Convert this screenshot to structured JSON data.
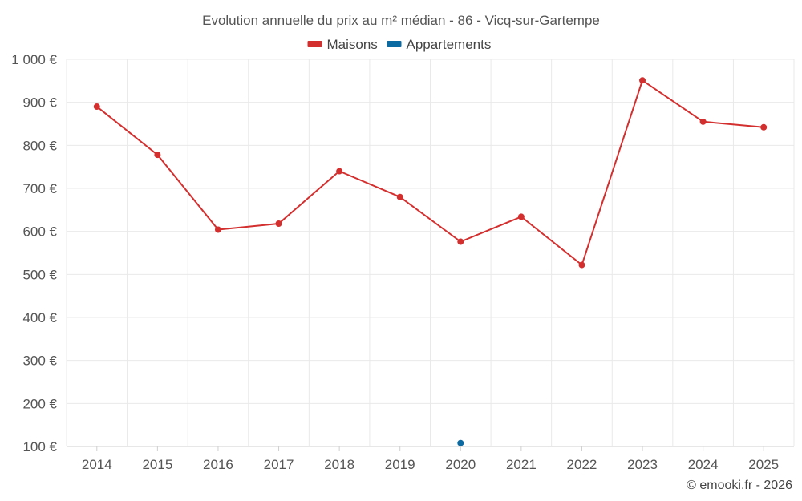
{
  "chart_data": {
    "type": "line",
    "title": "Evolution annuelle du prix au m² médian - 86 - Vicq-sur-Gartempe",
    "categories": [
      "2014",
      "2015",
      "2016",
      "2017",
      "2018",
      "2019",
      "2020",
      "2021",
      "2022",
      "2023",
      "2024",
      "2025"
    ],
    "ylim": [
      100,
      1000
    ],
    "yticks": [
      {
        "value": 100,
        "label": "100 €"
      },
      {
        "value": 200,
        "label": "200 €"
      },
      {
        "value": 300,
        "label": "300 €"
      },
      {
        "value": 400,
        "label": "400 €"
      },
      {
        "value": 500,
        "label": "500 €"
      },
      {
        "value": 600,
        "label": "600 €"
      },
      {
        "value": 700,
        "label": "700 €"
      },
      {
        "value": 800,
        "label": "800 €"
      },
      {
        "value": 900,
        "label": "900 €"
      },
      {
        "value": 1000,
        "label": "1 000 €"
      }
    ],
    "series": [
      {
        "name": "Maisons",
        "color": "#d32f2f",
        "values": [
          890,
          778,
          604,
          618,
          740,
          680,
          576,
          634,
          522,
          951,
          855,
          842
        ]
      },
      {
        "name": "Appartements",
        "color": "#0b6aa2",
        "values": [
          null,
          null,
          null,
          null,
          null,
          null,
          108,
          null,
          null,
          null,
          null,
          null
        ]
      }
    ],
    "legend_position": "top-center",
    "grid": true,
    "credit": "© emooki.fr - 2026"
  }
}
